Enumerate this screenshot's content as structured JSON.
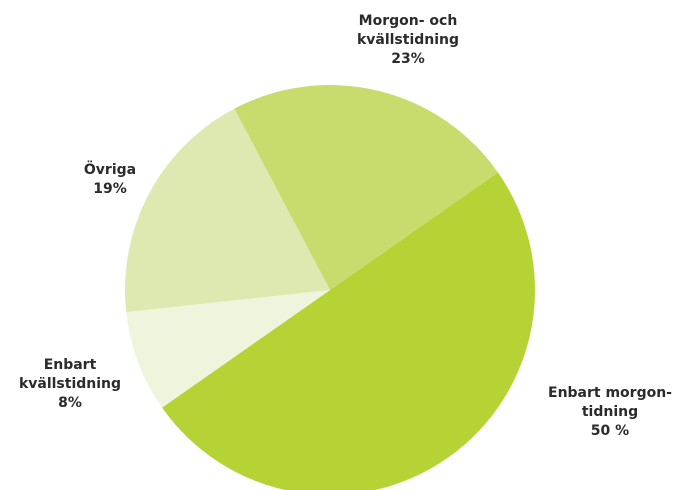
{
  "chart_data": {
    "type": "pie",
    "categories": [
      "Enbart morgon-tidning",
      "Enbart kvällstidning",
      "Övriga",
      "Morgon- och kvällstidning"
    ],
    "values": [
      50,
      8,
      19,
      23
    ],
    "value_labels": [
      "50 %",
      "8%",
      "19%",
      "23%"
    ],
    "colors": [
      "#b5d334",
      "#eff5dc",
      "#dde9b0",
      "#c8dc6e"
    ]
  }
}
